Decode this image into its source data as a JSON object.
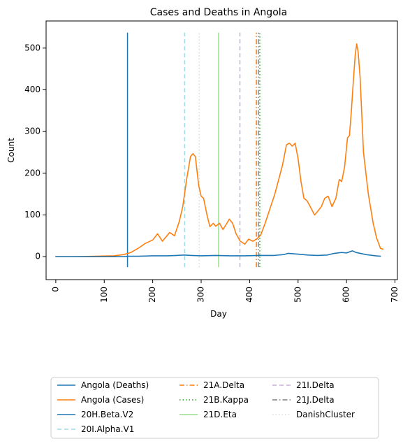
{
  "chart_data": {
    "type": "line",
    "title": "Cases and Deaths in Angola",
    "xlabel": "Day",
    "ylabel": "Count",
    "xlim": [
      -20,
      705
    ],
    "ylim": [
      -55,
      565
    ],
    "x_ticks": [
      0,
      100,
      200,
      300,
      400,
      500,
      600,
      700
    ],
    "y_ticks": [
      0,
      100,
      200,
      300,
      400,
      500
    ],
    "grid": false,
    "legend_position": "below-chart",
    "series": [
      {
        "name": "Angola (Deaths)",
        "color": "#1f77b4",
        "style": "solid",
        "points": [
          [
            0,
            0
          ],
          [
            50,
            0
          ],
          [
            100,
            0
          ],
          [
            140,
            0
          ],
          [
            150,
            1
          ],
          [
            170,
            1
          ],
          [
            200,
            2
          ],
          [
            230,
            2
          ],
          [
            250,
            3
          ],
          [
            265,
            4
          ],
          [
            280,
            3
          ],
          [
            300,
            2
          ],
          [
            330,
            3
          ],
          [
            360,
            2
          ],
          [
            390,
            2
          ],
          [
            420,
            3
          ],
          [
            450,
            3
          ],
          [
            470,
            5
          ],
          [
            480,
            8
          ],
          [
            500,
            6
          ],
          [
            520,
            4
          ],
          [
            540,
            3
          ],
          [
            560,
            4
          ],
          [
            575,
            8
          ],
          [
            590,
            10
          ],
          [
            600,
            9
          ],
          [
            612,
            14
          ],
          [
            620,
            10
          ],
          [
            640,
            5
          ],
          [
            660,
            2
          ],
          [
            670,
            1
          ]
        ]
      },
      {
        "name": "Angola (Cases)",
        "color": "#ff7f0e",
        "style": "solid",
        "points": [
          [
            0,
            0
          ],
          [
            40,
            0
          ],
          [
            80,
            1
          ],
          [
            120,
            2
          ],
          [
            140,
            5
          ],
          [
            155,
            10
          ],
          [
            170,
            20
          ],
          [
            185,
            32
          ],
          [
            200,
            40
          ],
          [
            210,
            55
          ],
          [
            220,
            37
          ],
          [
            235,
            58
          ],
          [
            245,
            50
          ],
          [
            255,
            85
          ],
          [
            262,
            120
          ],
          [
            270,
            185
          ],
          [
            278,
            240
          ],
          [
            283,
            247
          ],
          [
            288,
            240
          ],
          [
            295,
            170
          ],
          [
            300,
            145
          ],
          [
            305,
            140
          ],
          [
            312,
            100
          ],
          [
            318,
            72
          ],
          [
            325,
            80
          ],
          [
            330,
            73
          ],
          [
            338,
            80
          ],
          [
            345,
            65
          ],
          [
            352,
            78
          ],
          [
            358,
            90
          ],
          [
            365,
            80
          ],
          [
            372,
            55
          ],
          [
            380,
            38
          ],
          [
            390,
            30
          ],
          [
            398,
            42
          ],
          [
            407,
            37
          ],
          [
            415,
            43
          ],
          [
            423,
            52
          ],
          [
            432,
            80
          ],
          [
            442,
            115
          ],
          [
            452,
            150
          ],
          [
            460,
            185
          ],
          [
            468,
            220
          ],
          [
            476,
            268
          ],
          [
            482,
            272
          ],
          [
            488,
            265
          ],
          [
            494,
            272
          ],
          [
            500,
            235
          ],
          [
            506,
            180
          ],
          [
            512,
            140
          ],
          [
            518,
            135
          ],
          [
            526,
            118
          ],
          [
            534,
            100
          ],
          [
            540,
            108
          ],
          [
            548,
            120
          ],
          [
            555,
            140
          ],
          [
            562,
            145
          ],
          [
            570,
            120
          ],
          [
            578,
            140
          ],
          [
            585,
            185
          ],
          [
            590,
            180
          ],
          [
            596,
            215
          ],
          [
            602,
            285
          ],
          [
            606,
            290
          ],
          [
            610,
            350
          ],
          [
            614,
            420
          ],
          [
            618,
            485
          ],
          [
            621,
            510
          ],
          [
            624,
            490
          ],
          [
            628,
            430
          ],
          [
            635,
            250
          ],
          [
            645,
            150
          ],
          [
            655,
            80
          ],
          [
            662,
            45
          ],
          [
            670,
            20
          ],
          [
            675,
            18
          ]
        ]
      }
    ],
    "vertical_lines": [
      {
        "name": "20H.Beta.V2",
        "x": 148,
        "color": "#1f77b4",
        "style": "solid"
      },
      {
        "name": "20I.Alpha.V1",
        "x": 266,
        "color": "#9edae5",
        "style": "dashed"
      },
      {
        "name": "21A.Delta",
        "x": 414,
        "color": "#ff7f0e",
        "style": "dashdot"
      },
      {
        "name": "21B.Kappa",
        "x": 421,
        "color": "#2ca02c",
        "style": "dotted"
      },
      {
        "name": "21D.Eta",
        "x": 336,
        "color": "#98df8a",
        "style": "solid"
      },
      {
        "name": "21I.Delta",
        "x": 380,
        "color": "#c5b0d5",
        "style": "dashed"
      },
      {
        "name": "21J.Delta",
        "x": 418,
        "color": "#7f7f7f",
        "style": "dashdot"
      },
      {
        "name": "DanishCluster",
        "x": 296,
        "color": "#dbdbdb",
        "style": "dotted"
      }
    ],
    "vertical_line_range": [
      -25,
      537
    ],
    "legend_entries": [
      {
        "label": "Angola (Deaths)",
        "color": "#1f77b4",
        "style": "solid"
      },
      {
        "label": "Angola (Cases)",
        "color": "#ff7f0e",
        "style": "solid"
      },
      {
        "label": "20H.Beta.V2",
        "color": "#1f77b4",
        "style": "solid"
      },
      {
        "label": "20I.Alpha.V1",
        "color": "#9edae5",
        "style": "dashed"
      },
      {
        "label": "21A.Delta",
        "color": "#ff7f0e",
        "style": "dashdot"
      },
      {
        "label": "21B.Kappa",
        "color": "#2ca02c",
        "style": "dotted"
      },
      {
        "label": "21D.Eta",
        "color": "#98df8a",
        "style": "solid"
      },
      {
        "label": "21I.Delta",
        "color": "#c5b0d5",
        "style": "dashed"
      },
      {
        "label": "21J.Delta",
        "color": "#7f7f7f",
        "style": "dashdot"
      },
      {
        "label": "DanishCluster",
        "color": "#dbdbdb",
        "style": "dotted"
      }
    ]
  }
}
